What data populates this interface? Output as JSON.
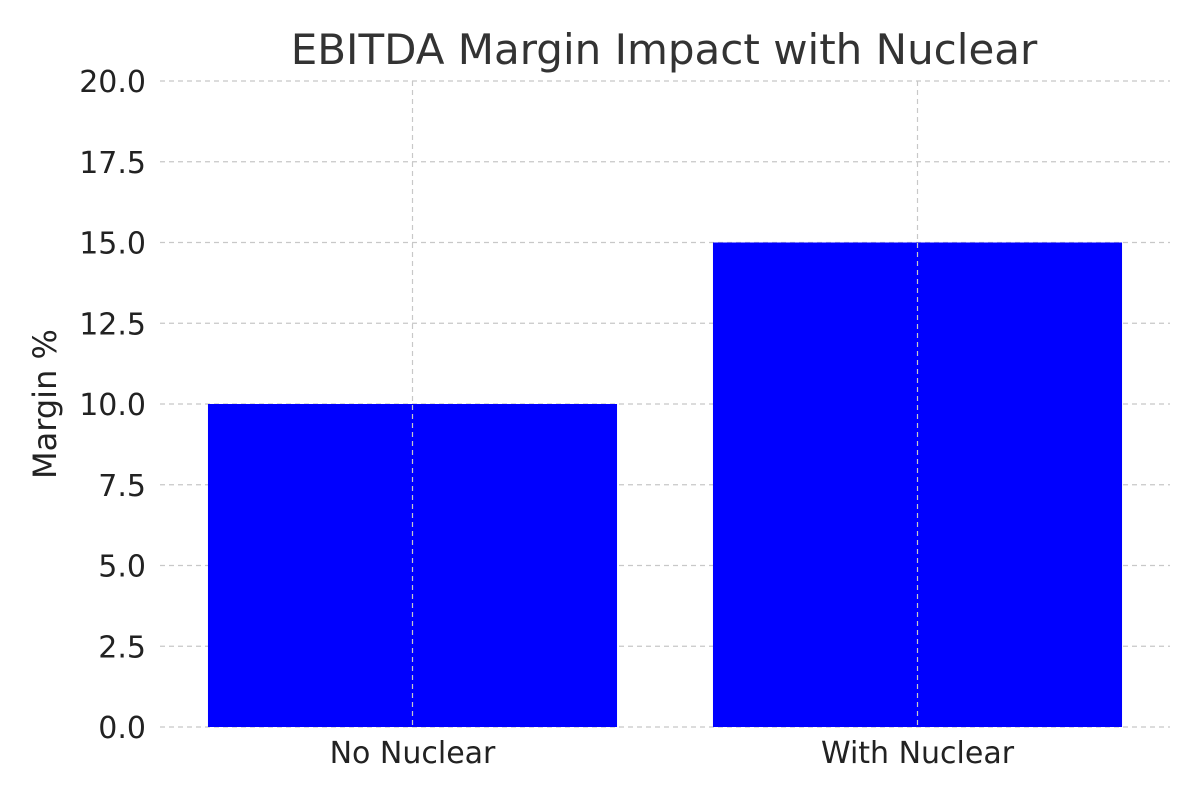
{
  "chart_data": {
    "type": "bar",
    "title": "EBITDA Margin Impact with Nuclear",
    "xlabel": "",
    "ylabel": "Margin %",
    "categories": [
      "No Nuclear",
      "With Nuclear"
    ],
    "values": [
      10.0,
      15.0
    ],
    "ylim": [
      0,
      20
    ],
    "yticks": [
      "0.0",
      "2.5",
      "5.0",
      "7.5",
      "10.0",
      "12.5",
      "15.0",
      "17.5",
      "20.0"
    ],
    "grid": true,
    "bar_color": "#0000ff"
  }
}
